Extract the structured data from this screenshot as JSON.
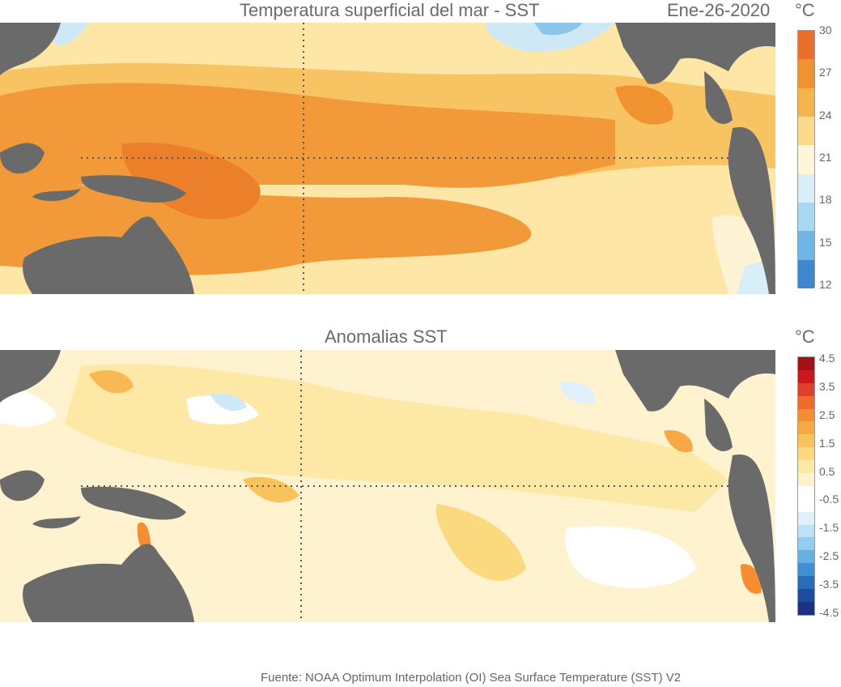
{
  "top_panel": {
    "title": "Temperatura superficial del mar - SST",
    "date": "Ene-26-2020",
    "unit": "°C",
    "colorbar": {
      "ticks": [
        "30",
        "27",
        "24",
        "21",
        "18",
        "15",
        "12"
      ],
      "colors": [
        "#e8702a",
        "#f0922f",
        "#f6b54a",
        "#fbd98a",
        "#fff6d8",
        "#d8eef8",
        "#a9d9f2",
        "#6fb5e6",
        "#3f88d0"
      ]
    }
  },
  "bottom_panel": {
    "title": "Anomalias SST",
    "unit": "°C",
    "colorbar": {
      "ticks": [
        "4.5",
        "3.5",
        "2.5",
        "1.5",
        "0.5",
        "-0.5",
        "-1.5",
        "-2.5",
        "-3.5",
        "-4.5"
      ],
      "colors": [
        "#a50f15",
        "#cb181d",
        "#e0402a",
        "#f06a2c",
        "#f58d33",
        "#f7a842",
        "#f9c35c",
        "#fbd97f",
        "#fde8a6",
        "#fff3cf",
        "#ffffff",
        "#ffffff",
        "#e0f1fb",
        "#bde2f6",
        "#94cdef",
        "#67b0e3",
        "#3f8fd2",
        "#2a6cbc",
        "#1f4c9e",
        "#1a3280"
      ]
    }
  },
  "colors": {
    "land": "#6a6a6a",
    "gridline": "#555555"
  },
  "footer": "Fuente: NOAA Optimum Interpolation (OI) Sea Surface Temperature (SST) V2"
}
